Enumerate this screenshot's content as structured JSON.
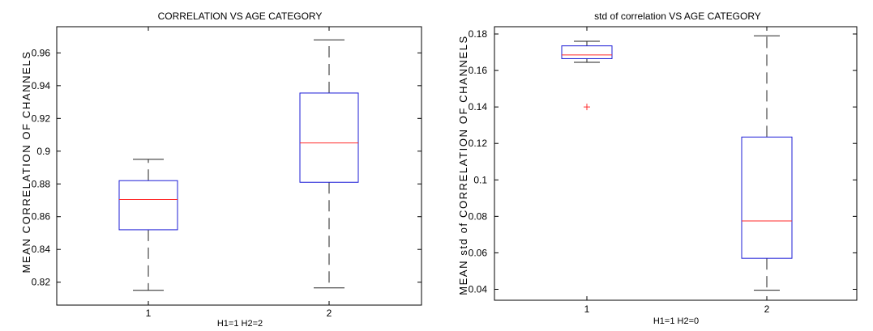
{
  "chart_data": [
    {
      "type": "box",
      "title": "CORRELATION VS AGE CATEGORY",
      "xlabel": "H1=1 H2=2",
      "ylabel": "MEAN CORRELATION OF CHANNELS",
      "categories": [
        "1",
        "2"
      ],
      "ylim": [
        0.806,
        0.976
      ],
      "yticks": [
        0.82,
        0.84,
        0.86,
        0.88,
        0.9,
        0.92,
        0.94,
        0.96
      ],
      "ytick_labels": [
        "0.82",
        "0.84",
        "0.86",
        "0.88",
        "0.9",
        "0.92",
        "0.94",
        "0.96"
      ],
      "boxes": [
        {
          "category": "1",
          "min": 0.815,
          "q1": 0.852,
          "median": 0.8705,
          "q3": 0.882,
          "max": 0.895,
          "outliers": []
        },
        {
          "category": "2",
          "min": 0.8165,
          "q1": 0.881,
          "median": 0.905,
          "q3": 0.9355,
          "max": 0.968,
          "outliers": []
        }
      ],
      "colors": {
        "box": "#1c1cd6",
        "median": "#ff2a2a",
        "whisker": "#222222"
      }
    },
    {
      "type": "box",
      "title": "std of correlation VS AGE CATEGORY",
      "xlabel": "H1=1 H2=0",
      "ylabel": "MEAN std of CORRELATION OF CHANNELS",
      "categories": [
        "1",
        "2"
      ],
      "ylim": [
        0.034,
        0.184
      ],
      "yticks": [
        0.04,
        0.06,
        0.08,
        0.1,
        0.12,
        0.14,
        0.16,
        0.18
      ],
      "ytick_labels": [
        "0.04",
        "0.06",
        "0.08",
        "0.1",
        "0.12",
        "0.14",
        "0.16",
        "0.18"
      ],
      "boxes": [
        {
          "category": "1",
          "min": 0.1645,
          "q1": 0.1665,
          "median": 0.1685,
          "q3": 0.1735,
          "max": 0.176,
          "outliers": [
            0.14
          ]
        },
        {
          "category": "2",
          "min": 0.0395,
          "q1": 0.057,
          "median": 0.0775,
          "q3": 0.1235,
          "max": 0.179,
          "outliers": []
        }
      ],
      "colors": {
        "box": "#1c1cd6",
        "median": "#ff2a2a",
        "whisker": "#222222"
      }
    }
  ]
}
